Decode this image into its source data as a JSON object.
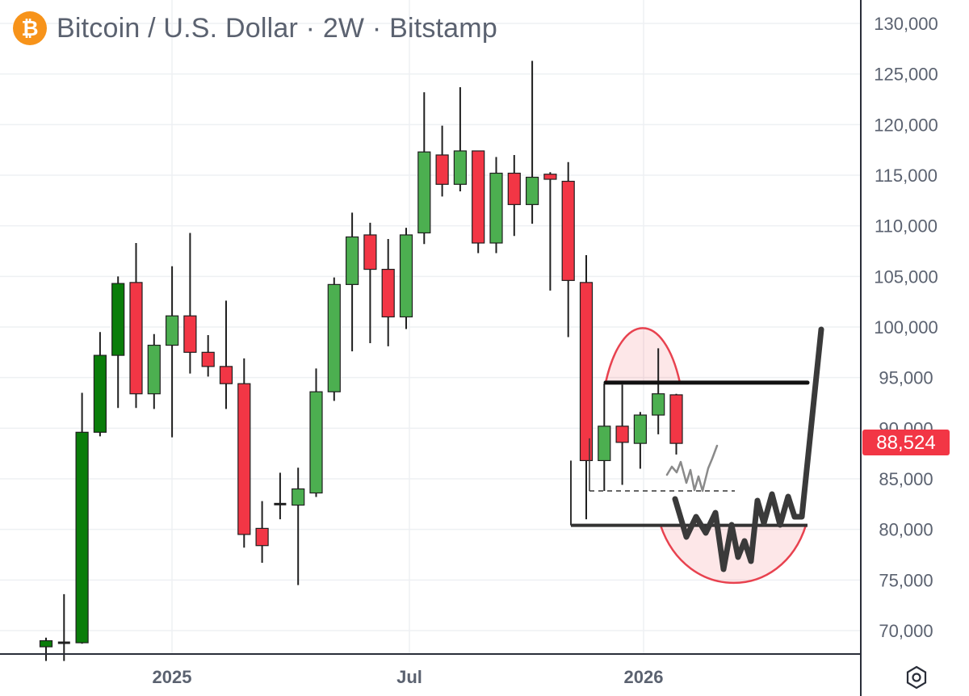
{
  "header": {
    "logo_glyph": "₿",
    "symbol": "Bitcoin / U.S. Dollar",
    "interval": "2W",
    "exchange": "Bitstamp",
    "separator": "·"
  },
  "price_label": {
    "value": "88,524",
    "color": "#f23645"
  },
  "colors": {
    "up": "#4caf50",
    "up_early": "#0a7d0a",
    "down": "#f23645",
    "wick": "#1f1f1f"
  },
  "icons": {
    "settings": "settings-hexagon-icon"
  },
  "chart_data": {
    "type": "candlestick",
    "x_labels": [
      "2025",
      "Jul",
      "2026"
    ],
    "y_ticks": [
      "70,000",
      "75,000",
      "80,000",
      "85,000",
      "90,000",
      "95,000",
      "100,000",
      "105,000",
      "110,000",
      "115,000",
      "120,000",
      "125,000",
      "130,000"
    ],
    "ylim": [
      67000,
      131500
    ],
    "grid": true,
    "candles": [
      {
        "o": 68400,
        "h": 69300,
        "l": 67000,
        "c": 69000,
        "dir": "up"
      },
      {
        "o": 68800,
        "h": 73600,
        "l": 67000,
        "c": 68800,
        "dir": "flat"
      },
      {
        "o": 68800,
        "h": 93500,
        "l": 68700,
        "c": 89600,
        "dir": "up"
      },
      {
        "o": 89600,
        "h": 99500,
        "l": 89200,
        "c": 97200,
        "dir": "up"
      },
      {
        "o": 97200,
        "h": 105000,
        "l": 92000,
        "c": 104300,
        "dir": "up"
      },
      {
        "o": 104400,
        "h": 108300,
        "l": 92000,
        "c": 93400,
        "dir": "down"
      },
      {
        "o": 93400,
        "h": 99300,
        "l": 91900,
        "c": 98200,
        "dir": "up"
      },
      {
        "o": 98200,
        "h": 106000,
        "l": 89100,
        "c": 101100,
        "dir": "up"
      },
      {
        "o": 101100,
        "h": 109300,
        "l": 95400,
        "c": 97500,
        "dir": "down"
      },
      {
        "o": 97500,
        "h": 99200,
        "l": 95100,
        "c": 96100,
        "dir": "down"
      },
      {
        "o": 96100,
        "h": 102600,
        "l": 91900,
        "c": 94400,
        "dir": "down"
      },
      {
        "o": 94400,
        "h": 96900,
        "l": 78200,
        "c": 79500,
        "dir": "down"
      },
      {
        "o": 80100,
        "h": 82800,
        "l": 76700,
        "c": 78400,
        "dir": "down"
      },
      {
        "o": 82500,
        "h": 85600,
        "l": 81000,
        "c": 82500,
        "dir": "flat"
      },
      {
        "o": 82400,
        "h": 86100,
        "l": 74500,
        "c": 84000,
        "dir": "up"
      },
      {
        "o": 83600,
        "h": 95900,
        "l": 83200,
        "c": 93600,
        "dir": "up"
      },
      {
        "o": 93600,
        "h": 104900,
        "l": 92700,
        "c": 104200,
        "dir": "up"
      },
      {
        "o": 104200,
        "h": 111300,
        "l": 97600,
        "c": 108900,
        "dir": "up"
      },
      {
        "o": 109100,
        "h": 110300,
        "l": 98400,
        "c": 105700,
        "dir": "down"
      },
      {
        "o": 105700,
        "h": 108700,
        "l": 98100,
        "c": 101000,
        "dir": "down"
      },
      {
        "o": 101000,
        "h": 109800,
        "l": 99800,
        "c": 109100,
        "dir": "up"
      },
      {
        "o": 109300,
        "h": 123200,
        "l": 108200,
        "c": 117300,
        "dir": "up"
      },
      {
        "o": 117000,
        "h": 119900,
        "l": 112900,
        "c": 114100,
        "dir": "down"
      },
      {
        "o": 114100,
        "h": 123700,
        "l": 113400,
        "c": 117400,
        "dir": "up"
      },
      {
        "o": 117400,
        "h": 117400,
        "l": 107300,
        "c": 108300,
        "dir": "down"
      },
      {
        "o": 108300,
        "h": 116800,
        "l": 107300,
        "c": 115200,
        "dir": "up"
      },
      {
        "o": 115200,
        "h": 117000,
        "l": 109000,
        "c": 112100,
        "dir": "down"
      },
      {
        "o": 112100,
        "h": 126300,
        "l": 110200,
        "c": 114800,
        "dir": "up"
      },
      {
        "o": 115100,
        "h": 115300,
        "l": 103600,
        "c": 114600,
        "dir": "down"
      },
      {
        "o": 114400,
        "h": 116300,
        "l": 99000,
        "c": 104600,
        "dir": "down"
      },
      {
        "o": 104400,
        "h": 107100,
        "l": 81000,
        "c": 86800,
        "dir": "down"
      },
      {
        "o": 86800,
        "h": 94400,
        "l": 83800,
        "c": 90200,
        "dir": "up"
      },
      {
        "o": 90200,
        "h": 94300,
        "l": 84400,
        "c": 88600,
        "dir": "down"
      },
      {
        "o": 88500,
        "h": 91600,
        "l": 86000,
        "c": 91300,
        "dir": "up"
      },
      {
        "o": 91300,
        "h": 97900,
        "l": 89400,
        "c": 93400,
        "dir": "up"
      },
      {
        "o": 93300,
        "h": 93400,
        "l": 87400,
        "c": 88500,
        "dir": "down"
      }
    ],
    "drawings": {
      "resistance_level": 94500,
      "support_level": 80400,
      "dashed_level": 83800
    }
  }
}
